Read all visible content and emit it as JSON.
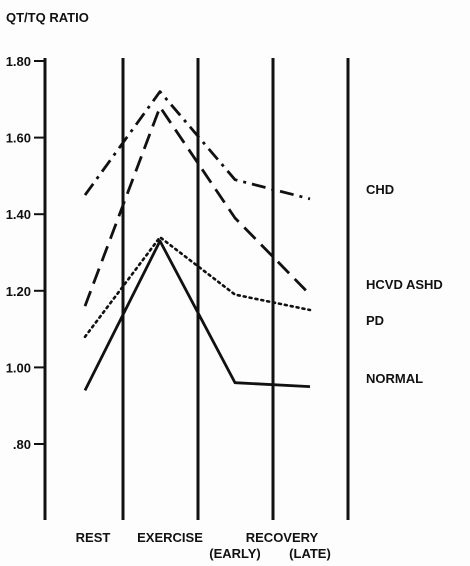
{
  "chart_data": {
    "type": "line",
    "ylabel": "QT/TQ RATIO",
    "ylim": [
      0.7,
      1.82
    ],
    "y_ticks": [
      {
        "value": 1.8,
        "label": "1.80"
      },
      {
        "value": 1.6,
        "label": "1.60"
      },
      {
        "value": 1.4,
        "label": "1.40"
      },
      {
        "value": 1.2,
        "label": "1.20"
      },
      {
        "value": 1.0,
        "label": "1.00"
      },
      {
        "value": 0.8,
        "label": ".80"
      }
    ],
    "columns": [
      {
        "label": "REST",
        "sublabel": ""
      },
      {
        "label": "EXERCISE",
        "sublabel": ""
      },
      {
        "label": "RECOVERY",
        "sublabel": "(EARLY)"
      },
      {
        "label": "",
        "sublabel": "(LATE)"
      }
    ],
    "series": [
      {
        "name": "CHD",
        "style": "dashdot",
        "values": [
          1.45,
          1.72,
          1.49,
          1.44
        ]
      },
      {
        "name": "HCVD ASHD",
        "style": "dashed",
        "values": [
          1.16,
          1.68,
          1.39,
          1.19
        ]
      },
      {
        "name": "PD",
        "style": "dotted",
        "values": [
          1.08,
          1.34,
          1.19,
          1.15
        ]
      },
      {
        "name": "NORMAL",
        "style": "solid",
        "values": [
          0.94,
          1.33,
          0.96,
          0.95
        ]
      }
    ],
    "legend": "right",
    "grid": false
  }
}
